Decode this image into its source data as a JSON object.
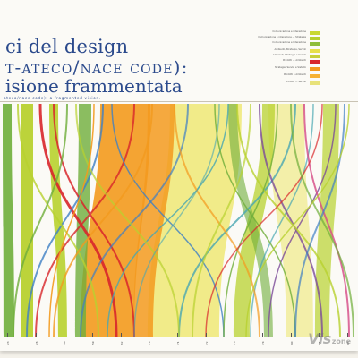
{
  "title": {
    "line1": "ci del design",
    "line2": "t-ateco/nace code):",
    "line3": "isione frammentata",
    "subtitle": "ateco/nace code): a fragmented vision."
  },
  "legend": {
    "items": [
      {
        "label": "Comunicazione e interazione",
        "color": "#c9d831"
      },
      {
        "label": "Comunicazione e interazione — Strategia",
        "color": "#b6cf2d"
      },
      {
        "label": "Comunicazione e Interazione",
        "color": "#8fbd3a"
      },
      {
        "label": "Ambienti, Strategia, Servizi",
        "color": "#e7e04a"
      },
      {
        "label": "Ambienti, Strategia e Servizi",
        "color": "#c8d03b"
      },
      {
        "label": "Prodotti — Ambienti",
        "color": "#d8262b"
      },
      {
        "label": "Strategie, Servizi e Sistemi",
        "color": "#f39a1e"
      },
      {
        "label": "Prodotti e Ambienti",
        "color": "#f7b233"
      },
      {
        "label": "Prodotti — Servizi",
        "color": "#e8e27a"
      }
    ]
  },
  "colors": {
    "lime": "#b8d12f",
    "green": "#6fae3b",
    "orange": "#f39a1e",
    "yellow": "#efe776",
    "red": "#d8262b",
    "blue": "#3f7fc4",
    "teal": "#49a6b2",
    "purple": "#7c4b98",
    "pink": "#d64a86"
  },
  "axis": {
    "ticks": [
      "23",
      "26",
      "58",
      "59",
      "62",
      "70",
      "71",
      "72",
      "73",
      "74",
      "90",
      "91",
      "93"
    ]
  },
  "watermark": {
    "main": "Vis",
    "sub": "zone"
  }
}
